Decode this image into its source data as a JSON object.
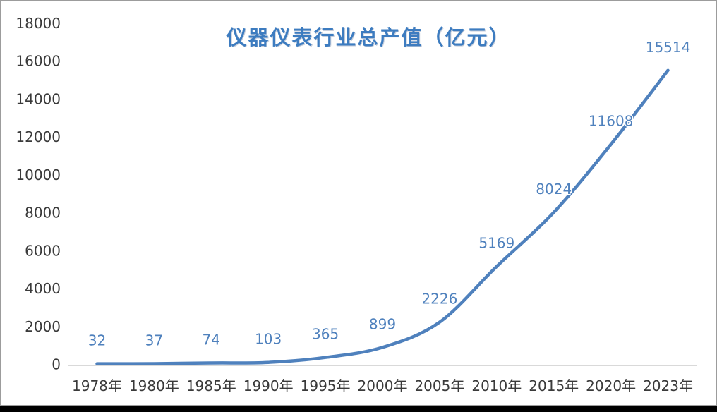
{
  "frame": {
    "border_color": "#9c9c9c",
    "bottom_bar_color": "#000000",
    "background_color": "#ffffff"
  },
  "chart_data": {
    "type": "line",
    "title": "仪器仪表行业总产值（亿元）",
    "categories": [
      "1978年",
      "1980年",
      "1985年",
      "1990年",
      "1995年",
      "2000年",
      "2005年",
      "2010年",
      "2015年",
      "2020年",
      "2023年"
    ],
    "values": [
      32,
      37,
      74,
      103,
      365,
      899,
      2226,
      5169,
      8024,
      11608,
      15514
    ],
    "data_labels": [
      "32",
      "37",
      "74",
      "103",
      "365",
      "899",
      "2226",
      "5169",
      "8024",
      "11608",
      "15514"
    ],
    "yticks": [
      0,
      2000,
      4000,
      6000,
      8000,
      10000,
      12000,
      14000,
      16000,
      18000
    ],
    "ylim": [
      0,
      18000
    ],
    "grid": "off",
    "legend": "none",
    "line_style": "smooth",
    "colors": {
      "line": "#4f81bd",
      "data_label": "#4f81bd",
      "title": "#3d7cc0",
      "axis_text": "#3a3a3a",
      "axis_line": "#d9d9d9"
    }
  }
}
